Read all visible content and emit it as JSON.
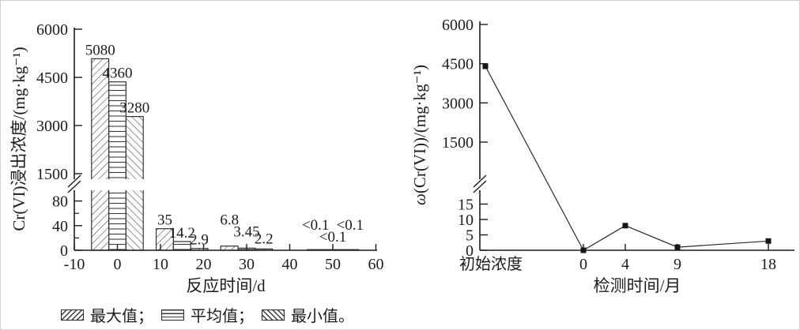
{
  "colors": {
    "ink": "#1c1c1c",
    "hatch": "#3a3a3a",
    "background": "#ffffff",
    "border": "#cfcfcf"
  },
  "chart_data": [
    {
      "type": "bar",
      "xlabel": "反应时间/d",
      "ylabel": "Cr(VI)浸出浓度/(mg·kg⁻¹)",
      "categories": [
        0,
        10,
        30,
        50
      ],
      "series": [
        {
          "name": "最大值",
          "hatch": "diag-up",
          "values": [
            5080,
            35,
            6.8,
            0.05
          ],
          "labels": [
            "5080",
            "35",
            "6.8",
            "<0.1"
          ]
        },
        {
          "name": "平均值",
          "hatch": "horizontal",
          "values": [
            4360,
            14.2,
            3.45,
            0.05
          ],
          "labels": [
            "4360",
            "14.2",
            "3.45",
            "<0.1"
          ]
        },
        {
          "name": "最小值",
          "hatch": "diag-down",
          "values": [
            3280,
            2.9,
            2.2,
            0.05
          ],
          "labels": [
            "3280",
            "2.9",
            "2.2",
            "<0.1"
          ]
        }
      ],
      "x_ticks": [
        "-10",
        "0",
        "10",
        "20",
        "30",
        "40",
        "50",
        "60"
      ],
      "x_range": [
        -10,
        60
      ],
      "y_axis_break": {
        "lower_ticks": [
          "0",
          "40",
          "80"
        ],
        "upper_ticks": [
          "1500",
          "3000",
          "4500",
          "6000"
        ],
        "lower_range": [
          0,
          110
        ],
        "upper_range": [
          1180,
          6000
        ]
      },
      "grid": false,
      "legend_position": "below"
    },
    {
      "type": "line",
      "xlabel": "检测时间/月",
      "ylabel": "ω(Cr(VI))/(mg·kg⁻¹)",
      "x_tick_labels": [
        "初始浓度",
        "0",
        "4",
        "9",
        "18"
      ],
      "points": [
        {
          "x": "初始浓度",
          "y": 4400
        },
        {
          "x": "0",
          "y": 0
        },
        {
          "x": "4",
          "y": 8
        },
        {
          "x": "9",
          "y": 1
        },
        {
          "x": "18",
          "y": 3
        }
      ],
      "marker": "square",
      "y_axis_break": {
        "lower_ticks": [
          "0",
          "5",
          "10",
          "15"
        ],
        "upper_ticks": [
          "1500",
          "3000",
          "4500",
          "6000"
        ],
        "lower_range": [
          0,
          20
        ],
        "upper_range": [
          1180,
          6000
        ]
      },
      "grid": false
    }
  ],
  "legend": {
    "items": [
      {
        "label": "最大值；",
        "hatch": "diag-up"
      },
      {
        "label": "平均值；",
        "hatch": "horizontal"
      },
      {
        "label": "最小值。",
        "hatch": "diag-down"
      }
    ]
  }
}
